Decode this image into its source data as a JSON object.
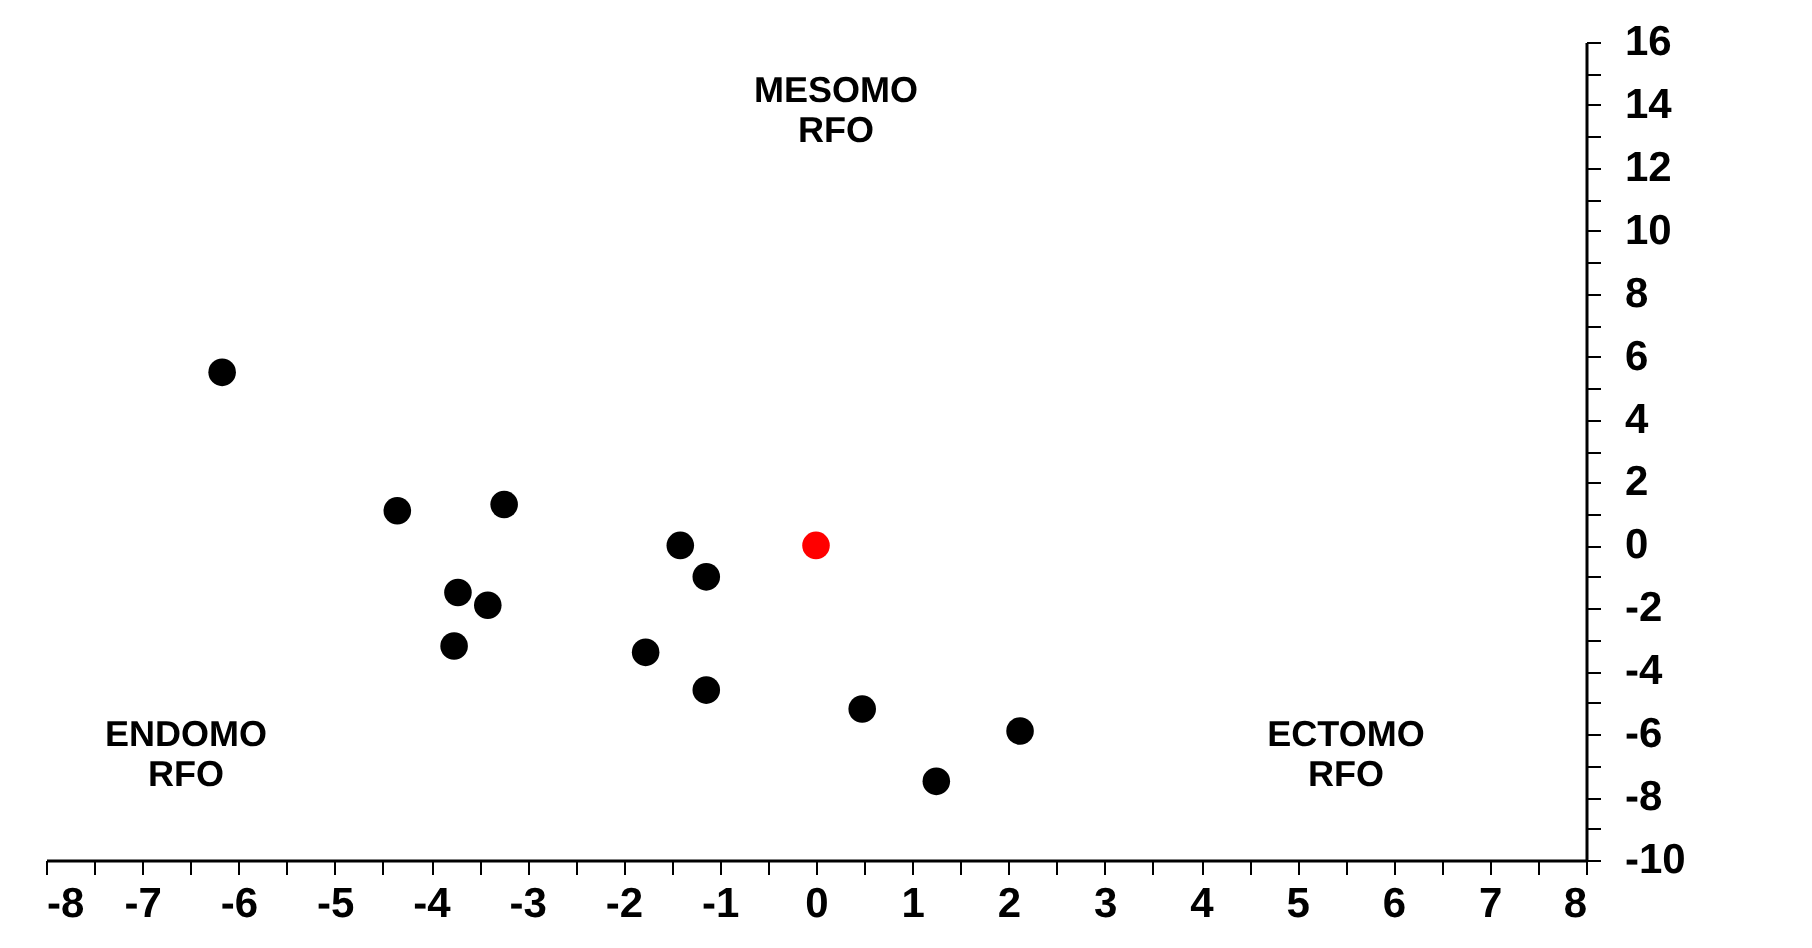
{
  "chart_data": {
    "type": "scatter",
    "series": [
      {
        "color": "#000000",
        "x": [
          -6.17,
          -4.35,
          -3.24,
          -1.41,
          -1.14,
          -3.72,
          -3.41,
          -3.76,
          -1.77,
          -1.14,
          0.48,
          2.12,
          1.25
        ],
        "values": [
          5.5,
          1.1,
          1.3,
          0.0,
          -1.0,
          -1.5,
          -1.9,
          -3.2,
          -3.4,
          -4.6,
          -5.2,
          -5.9,
          -7.5
        ]
      },
      {
        "color": "#ff0000",
        "x": [
          0.0
        ],
        "values": [
          0.0
        ]
      }
    ],
    "marker": "circle",
    "xlim": [
      -8,
      8
    ],
    "xticks": [
      -8,
      {
        "value": -7.5,
        "label": null
      },
      -7,
      {
        "value": -6.5,
        "label": null
      },
      -6,
      {
        "value": -5.5,
        "label": null
      },
      -5,
      {
        "value": -4.5,
        "label": null
      },
      -4,
      {
        "value": -3.5,
        "label": null
      },
      -3,
      {
        "value": -2.5,
        "label": null
      },
      -2,
      {
        "value": -1.5,
        "label": null
      },
      -1,
      {
        "value": -0.5,
        "label": null
      },
      0,
      {
        "value": 0.5,
        "label": null
      },
      1,
      {
        "value": 1.5,
        "label": null
      },
      2,
      {
        "value": 2.5,
        "label": null
      },
      3,
      {
        "value": 3.5,
        "label": null
      },
      4,
      {
        "value": 4.5,
        "label": null
      },
      5,
      {
        "value": 5.5,
        "label": null
      },
      6,
      {
        "value": 6.5,
        "label": null
      },
      7,
      {
        "value": 7.5,
        "label": null
      },
      8
    ],
    "ylim": [
      -10,
      16
    ],
    "yticks": [
      -10,
      {
        "value": -9,
        "label": null
      },
      -8,
      {
        "value": -7,
        "label": null
      },
      -6,
      {
        "value": -5,
        "label": null
      },
      -4,
      {
        "value": -3,
        "label": null
      },
      -2,
      {
        "value": -1,
        "label": null
      },
      0,
      {
        "value": 1,
        "label": null
      },
      2,
      {
        "value": 3,
        "label": null
      },
      4,
      {
        "value": 5,
        "label": null
      },
      6,
      {
        "value": 7,
        "label": null
      },
      8,
      {
        "value": 9,
        "label": null
      },
      10,
      {
        "value": 11,
        "label": null
      },
      12,
      {
        "value": 13,
        "label": null
      },
      14,
      {
        "value": 15,
        "label": null
      },
      16
    ],
    "annotations": [
      "MESOMO\nRFO",
      "ENDOMO\nRFO",
      "ECTOMO\nRFO"
    ]
  }
}
